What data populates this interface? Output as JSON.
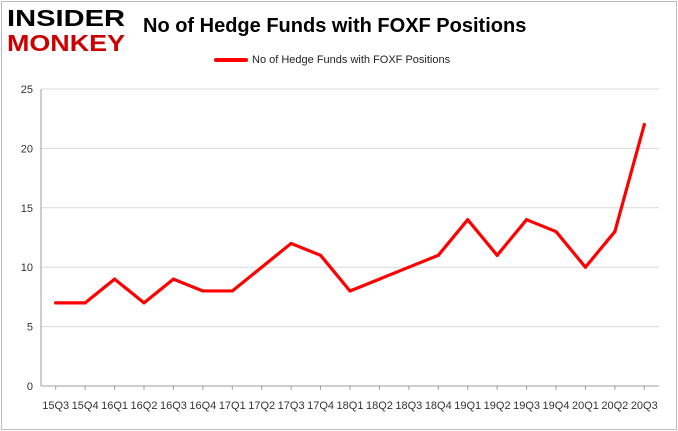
{
  "brand": {
    "logo_line1": "INSIDER",
    "logo_line2": "MONKEY",
    "logo_color": "#cc0000"
  },
  "chart_data": {
    "type": "line",
    "title": "No of Hedge Funds with FOXF Positions",
    "xlabel": "",
    "ylabel": "",
    "categories": [
      "2015Q3",
      "2015Q4",
      "2016Q1",
      "2016Q2",
      "2016Q3",
      "2016Q4",
      "2017Q1",
      "2017Q2",
      "2017Q3",
      "2017Q4",
      "2018Q1",
      "2018Q2",
      "2018Q3",
      "2018Q4",
      "2019Q1",
      "2019Q2",
      "2019Q3",
      "2019Q4",
      "2020Q1",
      "2020Q2",
      "2020Q3"
    ],
    "tick_labels": [
      "15Q3",
      "15Q4",
      "16Q1",
      "16Q2",
      "16Q3",
      "16Q4",
      "17Q1",
      "17Q2",
      "17Q3",
      "17Q4",
      "18Q1",
      "18Q2",
      "18Q3",
      "18Q4",
      "19Q1",
      "19Q2",
      "19Q3",
      "19Q4",
      "20Q1",
      "20Q2",
      "20Q3"
    ],
    "series": [
      {
        "name": "No of Hedge Funds with FOXF Positions",
        "color": "#ff0000",
        "values": [
          7,
          7,
          9,
          7,
          9,
          8,
          8,
          10,
          12,
          11,
          8,
          9,
          10,
          11,
          14,
          11,
          14,
          13,
          10,
          13,
          22
        ]
      }
    ],
    "ylim": [
      0,
      25
    ],
    "yticks": [
      0,
      5,
      10,
      15,
      20,
      25
    ],
    "grid": true,
    "legend_position": "top-center"
  }
}
